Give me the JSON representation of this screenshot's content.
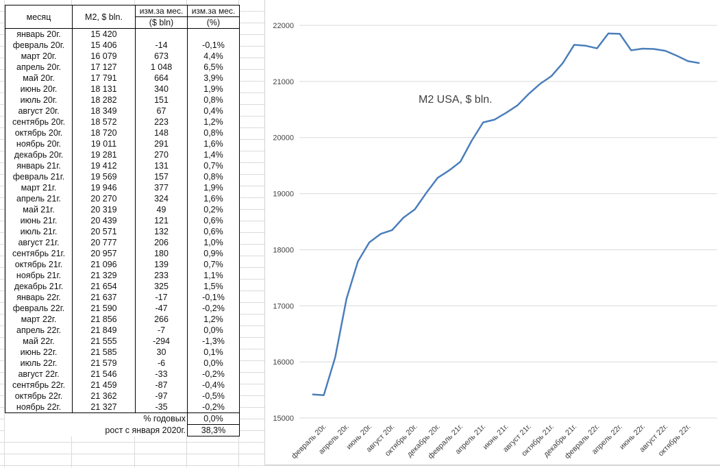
{
  "table": {
    "headers": {
      "month": "месяц",
      "m2": "M2, $ bln.",
      "chg_abs_1": "изм.за мес.",
      "chg_abs_2": "($ bln)",
      "chg_pct_1": "изм.за мес.",
      "chg_pct_2": "(%)"
    },
    "rows": [
      [
        "январь 20г.",
        "15 420",
        "",
        ""
      ],
      [
        "февраль 20г.",
        "15 406",
        "-14",
        "-0,1%"
      ],
      [
        "март 20г.",
        "16 079",
        "673",
        "4,4%"
      ],
      [
        "апрель 20г.",
        "17 127",
        "1 048",
        "6,5%"
      ],
      [
        "май 20г.",
        "17 791",
        "664",
        "3,9%"
      ],
      [
        "июнь 20г.",
        "18 131",
        "340",
        "1,9%"
      ],
      [
        "июль 20г.",
        "18 282",
        "151",
        "0,8%"
      ],
      [
        "август 20г.",
        "18 349",
        "67",
        "0,4%"
      ],
      [
        "сентябрь 20г.",
        "18 572",
        "223",
        "1,2%"
      ],
      [
        "октябрь 20г.",
        "18 720",
        "148",
        "0,8%"
      ],
      [
        "ноябрь 20г.",
        "19 011",
        "291",
        "1,6%"
      ],
      [
        "декабрь 20г.",
        "19 281",
        "270",
        "1,4%"
      ],
      [
        "январь 21г.",
        "19 412",
        "131",
        "0,7%"
      ],
      [
        "февраль 21г.",
        "19 569",
        "157",
        "0,8%"
      ],
      [
        "март 21г.",
        "19 946",
        "377",
        "1,9%"
      ],
      [
        "апрель 21г.",
        "20 270",
        "324",
        "1,6%"
      ],
      [
        "май 21г.",
        "20 319",
        "49",
        "0,2%"
      ],
      [
        "июнь 21г.",
        "20 439",
        "121",
        "0,6%"
      ],
      [
        "июль 21г.",
        "20 571",
        "132",
        "0,6%"
      ],
      [
        "август 21г.",
        "20 777",
        "206",
        "1,0%"
      ],
      [
        "сентябрь 21г.",
        "20 957",
        "180",
        "0,9%"
      ],
      [
        "октябрь 21г.",
        "21 096",
        "139",
        "0,7%"
      ],
      [
        "ноябрь 21г.",
        "21 329",
        "233",
        "1,1%"
      ],
      [
        "декабрь 21г.",
        "21 654",
        "325",
        "1,5%"
      ],
      [
        "январь 22г.",
        "21 637",
        "-17",
        "-0,1%"
      ],
      [
        "февраль 22г.",
        "21 590",
        "-47",
        "-0,2%"
      ],
      [
        "март 22г.",
        "21 856",
        "266",
        "1,2%"
      ],
      [
        "апрель 22г.",
        "21 849",
        "-7",
        "0,0%"
      ],
      [
        "май 22г.",
        "21 555",
        "-294",
        "-1,3%"
      ],
      [
        "июнь 22г.",
        "21 585",
        "30",
        "0,1%"
      ],
      [
        "июль 22г.",
        "21 579",
        "-6",
        "0,0%"
      ],
      [
        "август 22г.",
        "21 546",
        "-33",
        "-0,2%"
      ],
      [
        "сентябрь 22г.",
        "21 459",
        "-87",
        "-0,4%"
      ],
      [
        "октябрь 22г.",
        "21 362",
        "-97",
        "-0,5%"
      ],
      [
        "ноябрь 22г.",
        "21 327",
        "-35",
        "-0,2%"
      ]
    ],
    "annual_label": "% годовых",
    "annual_value": "0,0%",
    "growth_label": "рост с января 2020г.",
    "growth_value": "38,3%"
  },
  "chart_data": {
    "type": "line",
    "title": "M2 USA, $ bln.",
    "categories": [
      "январь 20г.",
      "февраль 20г.",
      "март 20г.",
      "апрель 20г.",
      "май 20г.",
      "июнь 20г.",
      "июль 20г.",
      "август 20г.",
      "сентябрь 20г.",
      "октябрь 20г.",
      "ноябрь 20г.",
      "декабрь 20г.",
      "январь 21г.",
      "февраль 21г.",
      "март 21г.",
      "апрель 21г.",
      "май 21г.",
      "июнь 21г.",
      "июль 21г.",
      "август 21г.",
      "сентябрь 21г.",
      "октябрь 21г.",
      "ноябрь 21г.",
      "декабрь 21г.",
      "январь 22г.",
      "февраль 22г.",
      "март 22г.",
      "апрель 22г.",
      "май 22г.",
      "июнь 22г.",
      "июль 22г.",
      "август 22г.",
      "сентябрь 22г.",
      "октябрь 22г.",
      "ноябрь 22г."
    ],
    "values": [
      15420,
      15406,
      16079,
      17127,
      17791,
      18131,
      18282,
      18349,
      18572,
      18720,
      19011,
      19281,
      19412,
      19569,
      19946,
      20270,
      20319,
      20439,
      20571,
      20777,
      20957,
      21096,
      21329,
      21654,
      21637,
      21590,
      21856,
      21849,
      21555,
      21585,
      21579,
      21546,
      21459,
      21362,
      21327
    ],
    "ylim": [
      15000,
      22000
    ],
    "yticks": [
      15000,
      16000,
      17000,
      18000,
      19000,
      20000,
      21000,
      22000
    ],
    "grid": true,
    "line_color": "#4a7ebb"
  }
}
